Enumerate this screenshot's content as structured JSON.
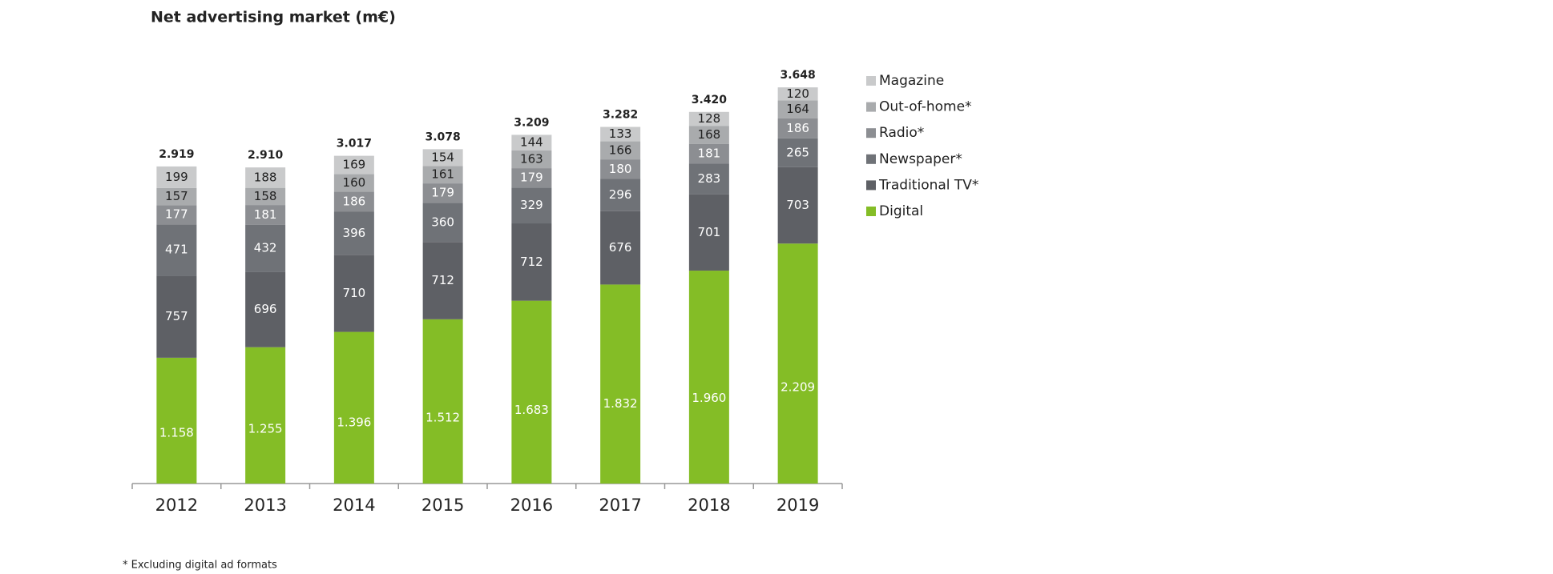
{
  "chart_data": {
    "type": "stacked_bar",
    "title": "Net advertising market (m€)",
    "categories": [
      "2012",
      "2013",
      "2014",
      "2015",
      "2016",
      "2017",
      "2018",
      "2019"
    ],
    "series": [
      {
        "name": "Digital",
        "color": "#84bd26",
        "values": [
          1158,
          1255,
          1396,
          1512,
          1683,
          1832,
          1960,
          2209
        ],
        "value_labels": [
          "1.158",
          "1.255",
          "1.396",
          "1.512",
          "1.683",
          "1.832",
          "1.960",
          "2.209"
        ]
      },
      {
        "name": "Traditional TV*",
        "color": "#5e6065",
        "values": [
          757,
          696,
          710,
          712,
          712,
          676,
          701,
          703
        ]
      },
      {
        "name": "Newspaper*",
        "color": "#6f7277",
        "values": [
          471,
          432,
          396,
          360,
          329,
          296,
          283,
          265
        ]
      },
      {
        "name": "Radio*",
        "color": "#8c8e92",
        "values": [
          177,
          181,
          186,
          179,
          179,
          180,
          181,
          186
        ]
      },
      {
        "name": "Out-of-home*",
        "color": "#a9abad",
        "values": [
          157,
          158,
          160,
          161,
          163,
          166,
          168,
          164
        ]
      },
      {
        "name": "Magazine",
        "color": "#c9cacb",
        "values": [
          199,
          188,
          169,
          154,
          144,
          133,
          128,
          120
        ]
      }
    ],
    "totals": [
      {
        "value": 2919,
        "label": "2.919"
      },
      {
        "value": 2910,
        "label": "2.910"
      },
      {
        "value": 3017,
        "label": "3.017"
      },
      {
        "value": 3078,
        "label": "3.078"
      },
      {
        "value": 3209,
        "label": "3.209"
      },
      {
        "value": 3282,
        "label": "3.282"
      },
      {
        "value": 3420,
        "label": "3.420"
      },
      {
        "value": 3648,
        "label": "3.648"
      }
    ],
    "footnote": "* Excluding digital ad formats"
  }
}
